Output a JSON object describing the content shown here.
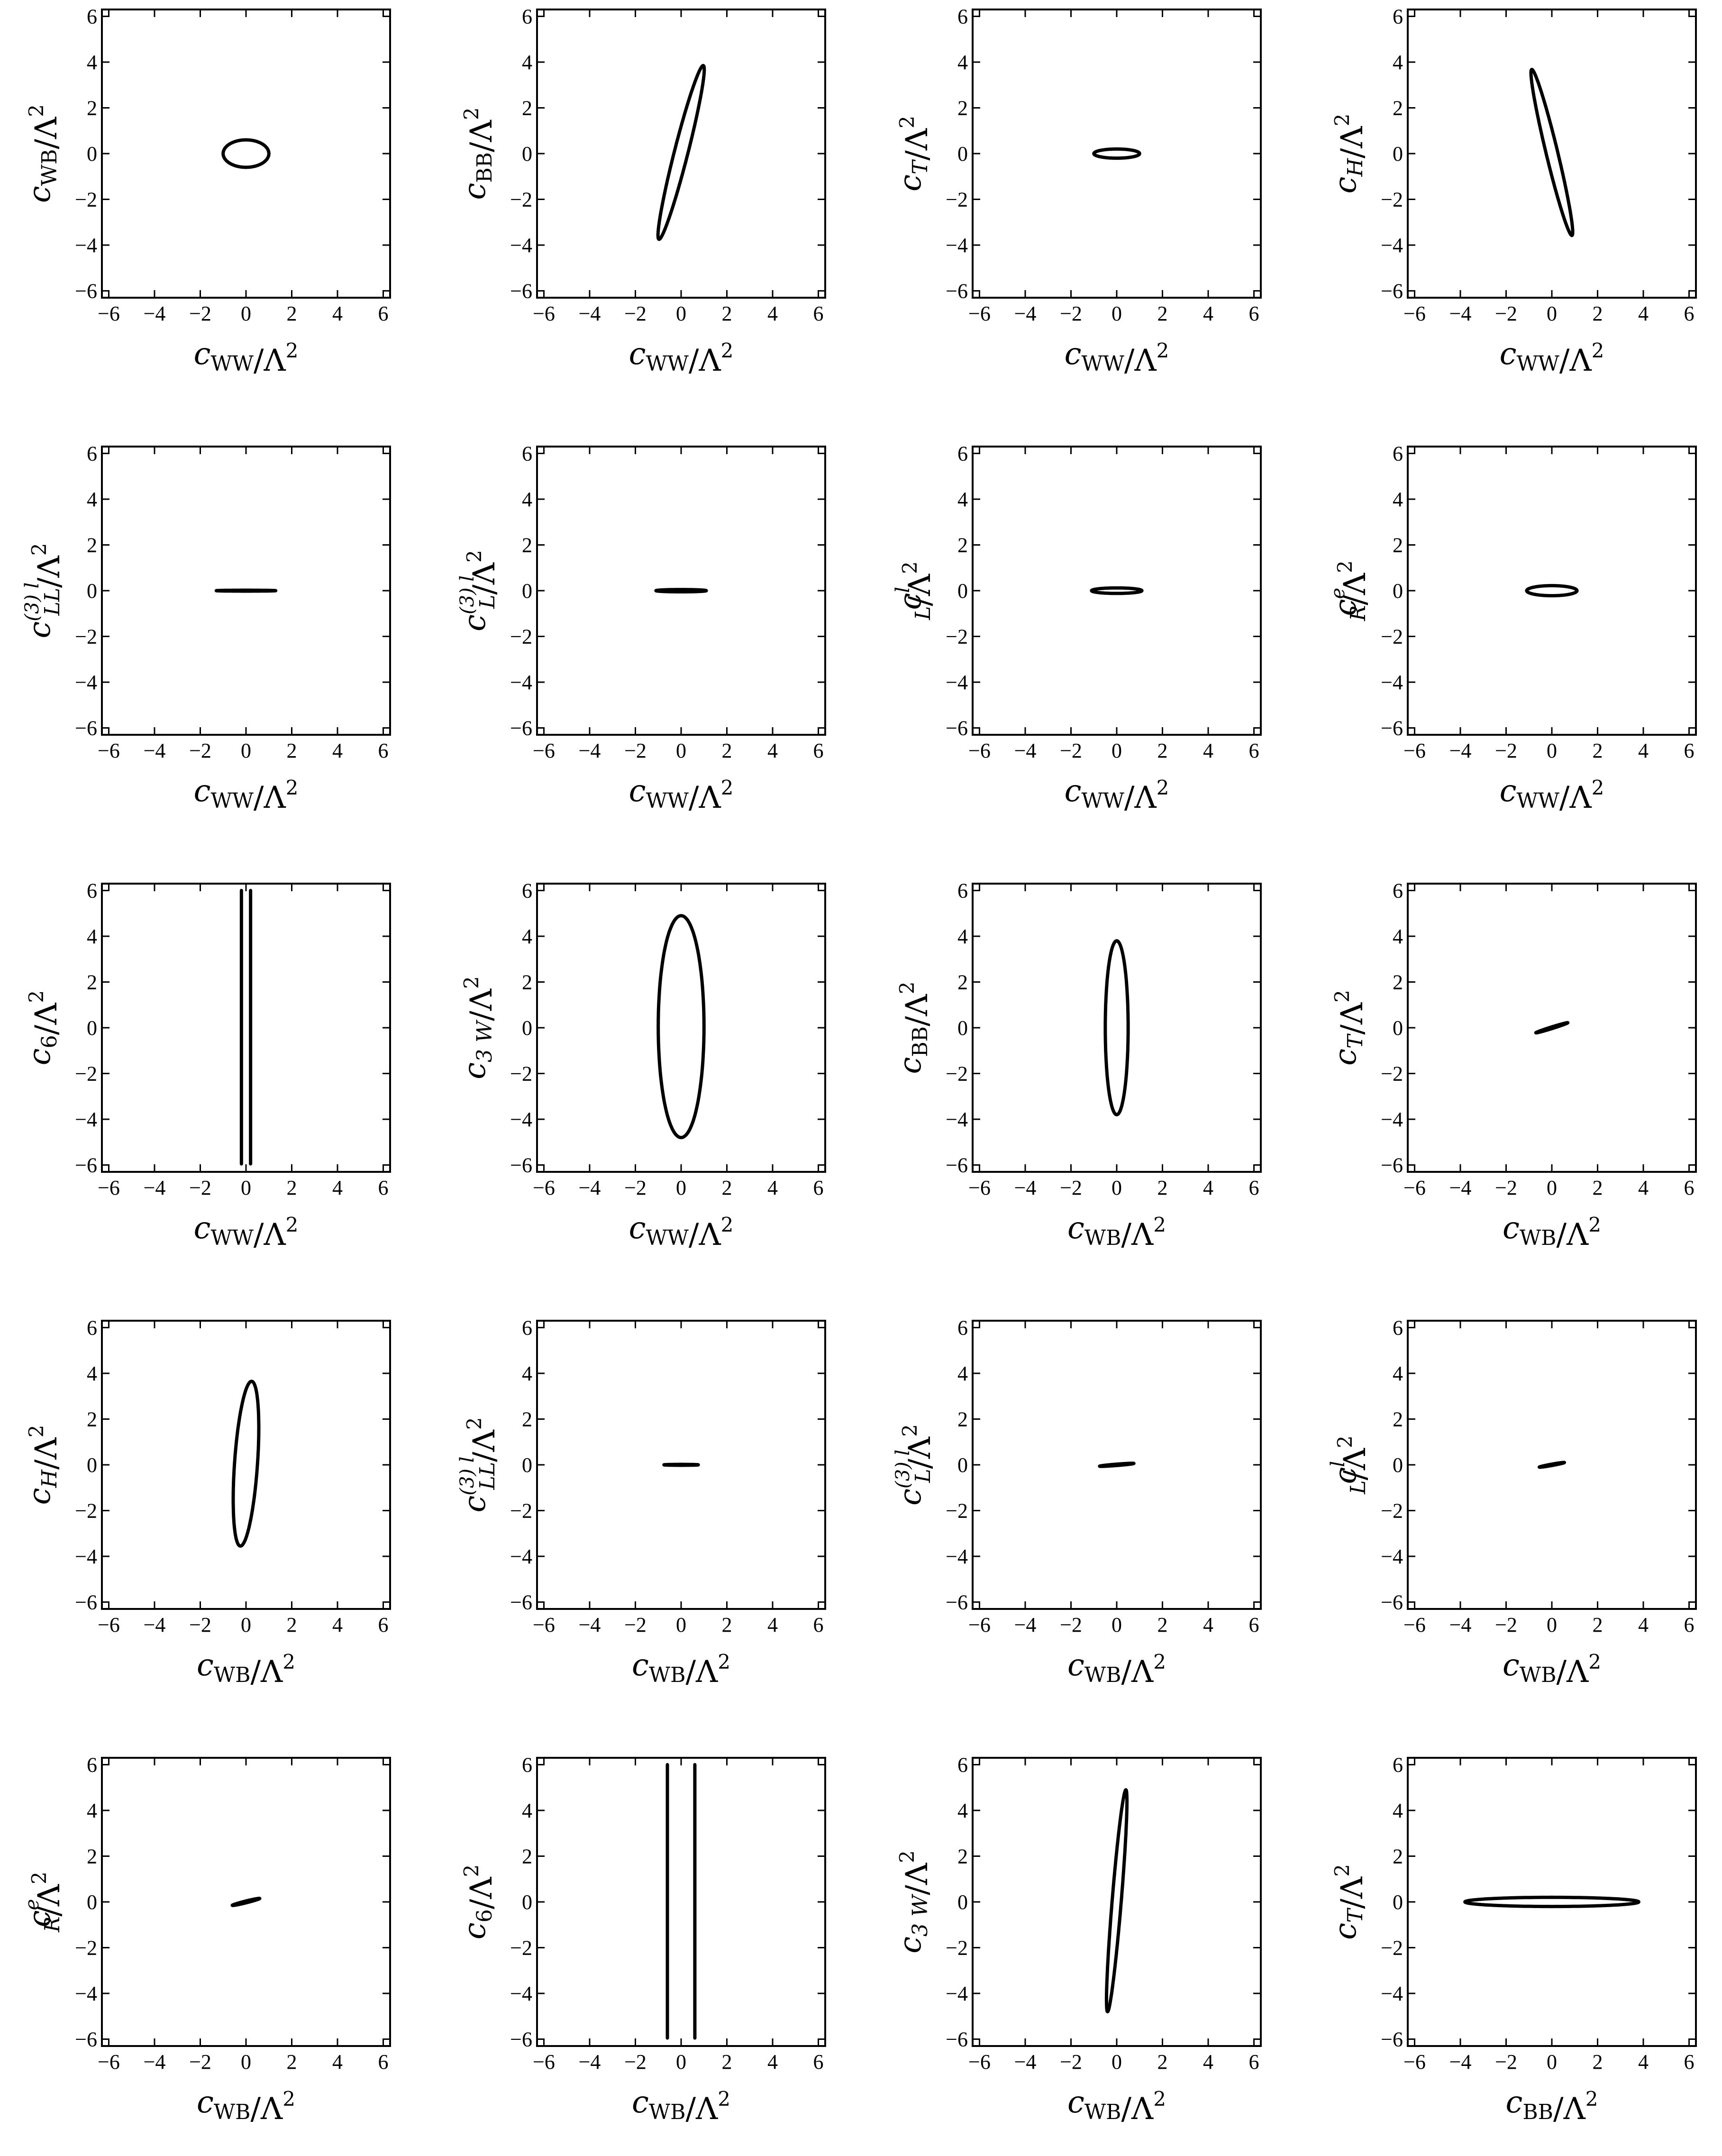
{
  "figure": {
    "line_color": "#000000",
    "background": "#ffffff"
  },
  "chart_data": [
    {
      "type": "contour",
      "xlabel": "c_WW/Λ^2",
      "ylabel": "c_WB/Λ^2",
      "xlim": [
        -6.3,
        6.3
      ],
      "ylim": [
        -6.3,
        6.3
      ],
      "xticks": [
        -6,
        -4,
        -2,
        0,
        2,
        4,
        6
      ],
      "yticks": [
        -6,
        -4,
        -2,
        0,
        2,
        4,
        6
      ],
      "contour": {
        "shape": "ellipse",
        "center": [
          0,
          0
        ],
        "extreme_points": [
          [
            1.0,
            0
          ],
          [
            0,
            0.6
          ]
        ]
      }
    },
    {
      "type": "contour",
      "xlabel": "c_WW/Λ^2",
      "ylabel": "c_BB/Λ^2",
      "xlim": [
        -6.3,
        6.3
      ],
      "ylim": [
        -6.3,
        6.3
      ],
      "xticks": [
        -6,
        -4,
        -2,
        0,
        2,
        4,
        6
      ],
      "yticks": [
        -6,
        -4,
        -2,
        0,
        2,
        4,
        6
      ],
      "contour": {
        "shape": "ellipse",
        "center": [
          0,
          0.05
        ],
        "extreme_points": [
          [
            1.0,
            3.8
          ],
          [
            0.15,
            -0.55
          ]
        ]
      }
    },
    {
      "type": "contour",
      "xlabel": "c_WW/Λ^2",
      "ylabel": "c_T/Λ^2",
      "xlim": [
        -6.3,
        6.3
      ],
      "ylim": [
        -6.3,
        6.3
      ],
      "xticks": [
        -6,
        -4,
        -2,
        0,
        2,
        4,
        6
      ],
      "yticks": [
        -6,
        -4,
        -2,
        0,
        2,
        4,
        6
      ],
      "contour": {
        "shape": "ellipse",
        "center": [
          0,
          0
        ],
        "extreme_points": [
          [
            1.0,
            0
          ],
          [
            0,
            0.2
          ]
        ]
      }
    },
    {
      "type": "contour",
      "xlabel": "c_WW/Λ^2",
      "ylabel": "c_H/Λ^2",
      "xlim": [
        -6.3,
        6.3
      ],
      "ylim": [
        -6.3,
        6.3
      ],
      "xticks": [
        -6,
        -4,
        -2,
        0,
        2,
        4,
        6
      ],
      "yticks": [
        -6,
        -4,
        -2,
        0,
        2,
        4,
        6
      ],
      "contour": {
        "shape": "ellipse",
        "center": [
          0,
          0.05
        ],
        "extreme_points": [
          [
            -0.9,
            3.65
          ],
          [
            0.15,
            0.5
          ]
        ]
      }
    },
    {
      "type": "contour",
      "xlabel": "c_WW/Λ^2",
      "ylabel": "c_LL^(3) l/Λ^2",
      "xlim": [
        -6.3,
        6.3
      ],
      "ylim": [
        -6.3,
        6.3
      ],
      "xticks": [
        -6,
        -4,
        -2,
        0,
        2,
        4,
        6
      ],
      "yticks": [
        -6,
        -4,
        -2,
        0,
        2,
        4,
        6
      ],
      "contour": {
        "shape": "ellipse",
        "center": [
          0,
          0
        ],
        "extreme_points": [
          [
            1.3,
            0
          ],
          [
            0,
            0.02
          ]
        ]
      }
    },
    {
      "type": "contour",
      "xlabel": "c_WW/Λ^2",
      "ylabel": "c_L^(3) l/Λ^2",
      "xlim": [
        -6.3,
        6.3
      ],
      "ylim": [
        -6.3,
        6.3
      ],
      "xticks": [
        -6,
        -4,
        -2,
        0,
        2,
        4,
        6
      ],
      "yticks": [
        -6,
        -4,
        -2,
        0,
        2,
        4,
        6
      ],
      "contour": {
        "shape": "ellipse",
        "center": [
          0,
          0
        ],
        "extreme_points": [
          [
            1.1,
            0
          ],
          [
            0,
            0.05
          ]
        ]
      }
    },
    {
      "type": "contour",
      "xlabel": "c_WW/Λ^2",
      "ylabel": "c_L^l/Λ^2",
      "xlim": [
        -6.3,
        6.3
      ],
      "ylim": [
        -6.3,
        6.3
      ],
      "xticks": [
        -6,
        -4,
        -2,
        0,
        2,
        4,
        6
      ],
      "yticks": [
        -6,
        -4,
        -2,
        0,
        2,
        4,
        6
      ],
      "contour": {
        "shape": "ellipse",
        "center": [
          0,
          0
        ],
        "extreme_points": [
          [
            1.1,
            0
          ],
          [
            0,
            0.12
          ]
        ]
      }
    },
    {
      "type": "contour",
      "xlabel": "c_WW/Λ^2",
      "ylabel": "c_R^e/Λ^2",
      "xlim": [
        -6.3,
        6.3
      ],
      "ylim": [
        -6.3,
        6.3
      ],
      "xticks": [
        -6,
        -4,
        -2,
        0,
        2,
        4,
        6
      ],
      "yticks": [
        -6,
        -4,
        -2,
        0,
        2,
        4,
        6
      ],
      "contour": {
        "shape": "ellipse",
        "center": [
          0,
          0
        ],
        "extreme_points": [
          [
            1.1,
            0
          ],
          [
            0,
            0.22
          ]
        ]
      }
    },
    {
      "type": "contour",
      "xlabel": "c_WW/Λ^2",
      "ylabel": "c_6/Λ^2",
      "xlim": [
        -6.3,
        6.3
      ],
      "ylim": [
        -6.3,
        6.3
      ],
      "xticks": [
        -6,
        -4,
        -2,
        0,
        2,
        4,
        6
      ],
      "yticks": [
        -6,
        -4,
        -2,
        0,
        2,
        4,
        6
      ],
      "contour": {
        "shape": "vertical_band",
        "x_values": [
          -0.2,
          0.2
        ],
        "y_range": [
          -5.95,
          6.0
        ]
      }
    },
    {
      "type": "contour",
      "xlabel": "c_WW/Λ^2",
      "ylabel": "c_3 W/Λ^2",
      "xlim": [
        -6.3,
        6.3
      ],
      "ylim": [
        -6.3,
        6.3
      ],
      "xticks": [
        -6,
        -4,
        -2,
        0,
        2,
        4,
        6
      ],
      "yticks": [
        -6,
        -4,
        -2,
        0,
        2,
        4,
        6
      ],
      "contour": {
        "shape": "ellipse",
        "center": [
          0,
          0.05
        ],
        "extreme_points": [
          [
            1.0,
            0.05
          ],
          [
            0,
            4.9
          ]
        ]
      }
    },
    {
      "type": "contour",
      "xlabel": "c_WB/Λ^2",
      "ylabel": "c_BB/Λ^2",
      "xlim": [
        -6.3,
        6.3
      ],
      "ylim": [
        -6.3,
        6.3
      ],
      "xticks": [
        -6,
        -4,
        -2,
        0,
        2,
        4,
        6
      ],
      "yticks": [
        -6,
        -4,
        -2,
        0,
        2,
        4,
        6
      ],
      "contour": {
        "shape": "ellipse",
        "center": [
          0,
          0
        ],
        "extreme_points": [
          [
            0.5,
            0
          ],
          [
            0,
            3.8
          ]
        ]
      }
    },
    {
      "type": "contour",
      "xlabel": "c_WB/Λ^2",
      "ylabel": "c_T/Λ^2",
      "xlim": [
        -6.3,
        6.3
      ],
      "ylim": [
        -6.3,
        6.3
      ],
      "xticks": [
        -6,
        -4,
        -2,
        0,
        2,
        4,
        6
      ],
      "yticks": [
        -6,
        -4,
        -2,
        0,
        2,
        4,
        6
      ],
      "contour": {
        "shape": "ellipse",
        "center": [
          0,
          0
        ],
        "extreme_points": [
          [
            0.7,
            0.22
          ],
          [
            -0.01,
            0.035
          ]
        ]
      }
    },
    {
      "type": "contour",
      "xlabel": "c_WB/Λ^2",
      "ylabel": "c_H/Λ^2",
      "xlim": [
        -6.3,
        6.3
      ],
      "ylim": [
        -6.3,
        6.3
      ],
      "xticks": [
        -6,
        -4,
        -2,
        0,
        2,
        4,
        6
      ],
      "yticks": [
        -6,
        -4,
        -2,
        0,
        2,
        4,
        6
      ],
      "contour": {
        "shape": "ellipse",
        "center": [
          0,
          0.05
        ],
        "extreme_points": [
          [
            0.25,
            3.65
          ],
          [
            0.5,
            0.0
          ]
        ]
      }
    },
    {
      "type": "contour",
      "xlabel": "c_WB/Λ^2",
      "ylabel": "c_LL^(3) l/Λ^2",
      "xlim": [
        -6.3,
        6.3
      ],
      "ylim": [
        -6.3,
        6.3
      ],
      "xticks": [
        -6,
        -4,
        -2,
        0,
        2,
        4,
        6
      ],
      "yticks": [
        -6,
        -4,
        -2,
        0,
        2,
        4,
        6
      ],
      "contour": {
        "shape": "ellipse",
        "center": [
          0,
          0
        ],
        "extreme_points": [
          [
            0.75,
            0
          ],
          [
            0,
            0.02
          ]
        ]
      }
    },
    {
      "type": "contour",
      "xlabel": "c_WB/Λ^2",
      "ylabel": "c_L^(3) l/Λ^2",
      "xlim": [
        -6.3,
        6.3
      ],
      "ylim": [
        -6.3,
        6.3
      ],
      "xticks": [
        -6,
        -4,
        -2,
        0,
        2,
        4,
        6
      ],
      "yticks": [
        -6,
        -4,
        -2,
        0,
        2,
        4,
        6
      ],
      "contour": {
        "shape": "ellipse",
        "center": [
          0,
          0
        ],
        "extreme_points": [
          [
            0.75,
            0.06
          ],
          [
            0,
            0.03
          ]
        ]
      }
    },
    {
      "type": "contour",
      "xlabel": "c_WB/Λ^2",
      "ylabel": "c_L^l/Λ^2",
      "xlim": [
        -6.3,
        6.3
      ],
      "ylim": [
        -6.3,
        6.3
      ],
      "xticks": [
        -6,
        -4,
        -2,
        0,
        2,
        4,
        6
      ],
      "yticks": [
        -6,
        -4,
        -2,
        0,
        2,
        4,
        6
      ],
      "contour": {
        "shape": "ellipse",
        "center": [
          0,
          0
        ],
        "extreme_points": [
          [
            0.55,
            0.1
          ],
          [
            0,
            0.03
          ]
        ]
      }
    },
    {
      "type": "contour",
      "xlabel": "c_WB/Λ^2",
      "ylabel": "c_R^e/Λ^2",
      "xlim": [
        -6.3,
        6.3
      ],
      "ylim": [
        -6.3,
        6.3
      ],
      "xticks": [
        -6,
        -4,
        -2,
        0,
        2,
        4,
        6
      ],
      "yticks": [
        -6,
        -4,
        -2,
        0,
        2,
        4,
        6
      ],
      "contour": {
        "shape": "ellipse",
        "center": [
          0,
          0
        ],
        "extreme_points": [
          [
            0.6,
            0.15
          ],
          [
            0,
            0.04
          ]
        ]
      }
    },
    {
      "type": "contour",
      "xlabel": "c_WB/Λ^2",
      "ylabel": "c_6/Λ^2",
      "xlim": [
        -6.3,
        6.3
      ],
      "ylim": [
        -6.3,
        6.3
      ],
      "xticks": [
        -6,
        -4,
        -2,
        0,
        2,
        4,
        6
      ],
      "yticks": [
        -6,
        -4,
        -2,
        0,
        2,
        4,
        6
      ],
      "contour": {
        "shape": "vertical_band",
        "x_values": [
          -0.6,
          0.6
        ],
        "y_range": [
          -5.95,
          6.0
        ]
      }
    },
    {
      "type": "contour",
      "xlabel": "c_WB/Λ^2",
      "ylabel": "c_3 W/Λ^2",
      "xlim": [
        -6.3,
        6.3
      ],
      "ylim": [
        -6.3,
        6.3
      ],
      "xticks": [
        -6,
        -4,
        -2,
        0,
        2,
        4,
        6
      ],
      "yticks": [
        -6,
        -4,
        -2,
        0,
        2,
        4,
        6
      ],
      "contour": {
        "shape": "ellipse",
        "center": [
          0,
          0.05
        ],
        "extreme_points": [
          [
            0.4,
            4.9
          ],
          [
            0.2,
            0.05
          ]
        ]
      }
    },
    {
      "type": "contour",
      "xlabel": "c_BB/Λ^2",
      "ylabel": "c_T/Λ^2",
      "xlim": [
        -6.3,
        6.3
      ],
      "ylim": [
        -6.3,
        6.3
      ],
      "xticks": [
        -6,
        -4,
        -2,
        0,
        2,
        4,
        6
      ],
      "yticks": [
        -6,
        -4,
        -2,
        0,
        2,
        4,
        6
      ],
      "contour": {
        "shape": "ellipse",
        "center": [
          0,
          0
        ],
        "extreme_points": [
          [
            3.8,
            0
          ],
          [
            0,
            0.2
          ]
        ]
      }
    }
  ]
}
